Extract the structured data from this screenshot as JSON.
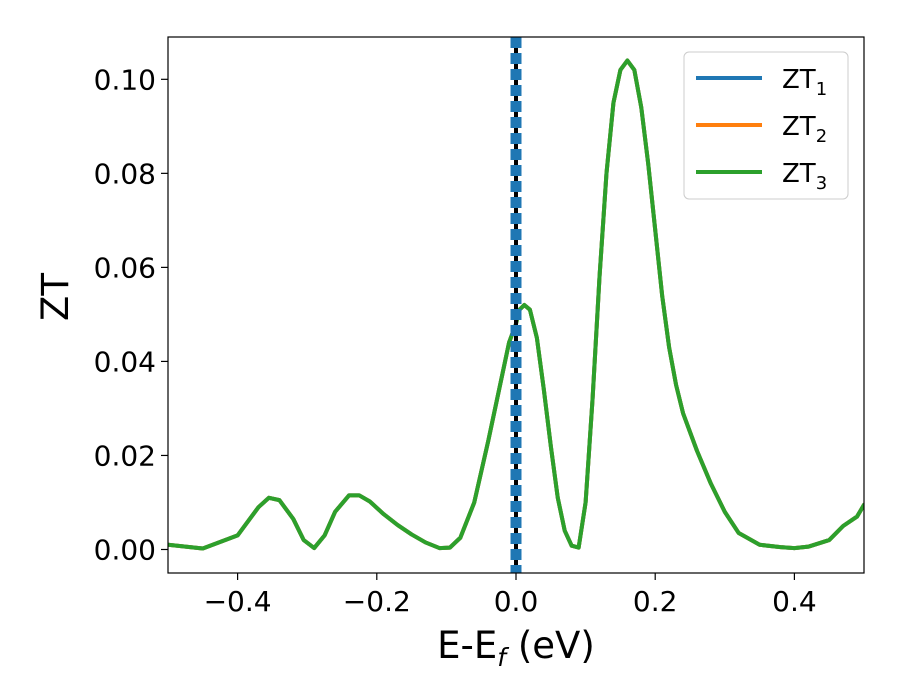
{
  "chart_data": {
    "type": "line",
    "xlabel": "E-E",
    "xlabel_sub": "f",
    "xlabel_unit": "(eV)",
    "ylabel": "ZT",
    "xlim": [
      -0.5,
      0.5
    ],
    "ylim": [
      -0.005,
      0.109
    ],
    "x_ticks": [
      -0.4,
      -0.2,
      0.0,
      0.2,
      0.4
    ],
    "x_tick_labels": [
      "−0.4",
      "−0.2",
      "0.0",
      "0.2",
      "0.4"
    ],
    "y_ticks": [
      0.0,
      0.02,
      0.04,
      0.06,
      0.08,
      0.1
    ],
    "y_tick_labels": [
      "0.00",
      "0.02",
      "0.04",
      "0.06",
      "0.08",
      "0.10"
    ],
    "grid": false,
    "legend_position": "top-right",
    "fermi_line_x": 0.0,
    "series": [
      {
        "name": "ZT",
        "name_sub": "1",
        "color": "#1f77b4",
        "x": [
          -0.5,
          -0.45,
          -0.4,
          -0.37,
          -0.355,
          -0.34,
          -0.32,
          -0.305,
          -0.29,
          -0.275,
          -0.26,
          -0.24,
          -0.225,
          -0.21,
          -0.19,
          -0.17,
          -0.15,
          -0.13,
          -0.11,
          -0.095,
          -0.08,
          -0.06,
          -0.04,
          -0.03,
          -0.02,
          -0.01,
          0.0,
          0.005,
          0.012,
          0.02,
          0.03,
          0.04,
          0.05,
          0.06,
          0.07,
          0.08,
          0.09,
          0.1,
          0.11,
          0.12,
          0.13,
          0.14,
          0.15,
          0.16,
          0.17,
          0.18,
          0.19,
          0.2,
          0.21,
          0.22,
          0.23,
          0.24,
          0.26,
          0.28,
          0.3,
          0.32,
          0.35,
          0.38,
          0.4,
          0.42,
          0.45,
          0.47,
          0.49,
          0.5
        ],
        "values": [
          0.001,
          0.0002,
          0.003,
          0.009,
          0.011,
          0.0105,
          0.0065,
          0.002,
          0.0003,
          0.003,
          0.008,
          0.0115,
          0.0115,
          0.0102,
          0.0075,
          0.0052,
          0.0032,
          0.0015,
          0.0003,
          0.0004,
          0.0025,
          0.01,
          0.023,
          0.03,
          0.037,
          0.044,
          0.048,
          0.051,
          0.052,
          0.051,
          0.045,
          0.034,
          0.022,
          0.011,
          0.004,
          0.0008,
          0.0004,
          0.01,
          0.032,
          0.058,
          0.08,
          0.095,
          0.102,
          0.104,
          0.102,
          0.094,
          0.082,
          0.068,
          0.054,
          0.043,
          0.035,
          0.029,
          0.021,
          0.014,
          0.008,
          0.0035,
          0.001,
          0.0005,
          0.0003,
          0.0006,
          0.002,
          0.005,
          0.007,
          0.0095
        ]
      },
      {
        "name": "ZT",
        "name_sub": "2",
        "color": "#ff7f0e",
        "x": [
          -0.5,
          -0.45,
          -0.4,
          -0.37,
          -0.355,
          -0.34,
          -0.32,
          -0.305,
          -0.29,
          -0.275,
          -0.26,
          -0.24,
          -0.225,
          -0.21,
          -0.19,
          -0.17,
          -0.15,
          -0.13,
          -0.11,
          -0.095,
          -0.08,
          -0.06,
          -0.04,
          -0.03,
          -0.02,
          -0.01,
          0.0,
          0.005,
          0.012,
          0.02,
          0.03,
          0.04,
          0.05,
          0.06,
          0.07,
          0.08,
          0.09,
          0.1,
          0.11,
          0.12,
          0.13,
          0.14,
          0.15,
          0.16,
          0.17,
          0.18,
          0.19,
          0.2,
          0.21,
          0.22,
          0.23,
          0.24,
          0.26,
          0.28,
          0.3,
          0.32,
          0.35,
          0.38,
          0.4,
          0.42,
          0.45,
          0.47,
          0.49,
          0.5
        ],
        "values": [
          0.001,
          0.0002,
          0.003,
          0.009,
          0.011,
          0.0105,
          0.0065,
          0.002,
          0.0003,
          0.003,
          0.008,
          0.0115,
          0.0115,
          0.0102,
          0.0075,
          0.0052,
          0.0032,
          0.0015,
          0.0003,
          0.0004,
          0.0025,
          0.01,
          0.023,
          0.03,
          0.037,
          0.044,
          0.048,
          0.051,
          0.052,
          0.051,
          0.045,
          0.034,
          0.022,
          0.011,
          0.004,
          0.0008,
          0.0004,
          0.01,
          0.032,
          0.058,
          0.08,
          0.095,
          0.102,
          0.104,
          0.102,
          0.094,
          0.082,
          0.068,
          0.054,
          0.043,
          0.035,
          0.029,
          0.021,
          0.014,
          0.008,
          0.0035,
          0.001,
          0.0005,
          0.0003,
          0.0006,
          0.002,
          0.005,
          0.007,
          0.0095
        ]
      },
      {
        "name": "ZT",
        "name_sub": "3",
        "color": "#2ca02c",
        "x": [
          -0.5,
          -0.45,
          -0.4,
          -0.37,
          -0.355,
          -0.34,
          -0.32,
          -0.305,
          -0.29,
          -0.275,
          -0.26,
          -0.24,
          -0.225,
          -0.21,
          -0.19,
          -0.17,
          -0.15,
          -0.13,
          -0.11,
          -0.095,
          -0.08,
          -0.06,
          -0.04,
          -0.03,
          -0.02,
          -0.01,
          0.0,
          0.005,
          0.012,
          0.02,
          0.03,
          0.04,
          0.05,
          0.06,
          0.07,
          0.08,
          0.09,
          0.1,
          0.11,
          0.12,
          0.13,
          0.14,
          0.15,
          0.16,
          0.17,
          0.18,
          0.19,
          0.2,
          0.21,
          0.22,
          0.23,
          0.24,
          0.26,
          0.28,
          0.3,
          0.32,
          0.35,
          0.38,
          0.4,
          0.42,
          0.45,
          0.47,
          0.49,
          0.5
        ],
        "values": [
          0.001,
          0.0002,
          0.003,
          0.009,
          0.011,
          0.0105,
          0.0065,
          0.002,
          0.0003,
          0.003,
          0.008,
          0.0115,
          0.0115,
          0.0102,
          0.0075,
          0.0052,
          0.0032,
          0.0015,
          0.0003,
          0.0004,
          0.0025,
          0.01,
          0.023,
          0.03,
          0.037,
          0.044,
          0.048,
          0.051,
          0.052,
          0.051,
          0.045,
          0.034,
          0.022,
          0.011,
          0.004,
          0.0008,
          0.0004,
          0.01,
          0.032,
          0.058,
          0.08,
          0.095,
          0.102,
          0.104,
          0.102,
          0.094,
          0.082,
          0.068,
          0.054,
          0.043,
          0.035,
          0.029,
          0.021,
          0.014,
          0.008,
          0.0035,
          0.001,
          0.0005,
          0.0003,
          0.0006,
          0.002,
          0.005,
          0.007,
          0.0095
        ]
      }
    ]
  }
}
